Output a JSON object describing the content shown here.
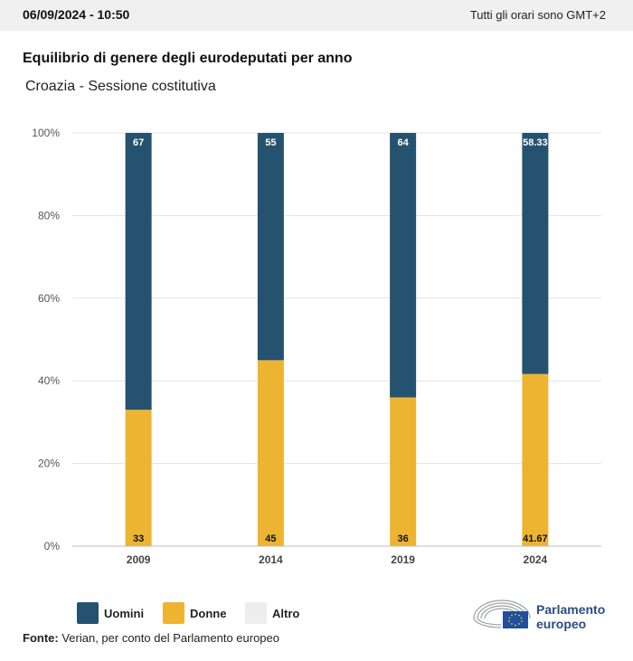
{
  "header": {
    "datetime": "06/09/2024 - 10:50",
    "timezone_note": "Tutti gli orari sono GMT+2"
  },
  "title": "Equilibrio di genere degli eurodeputati per anno",
  "subtitle": "Croazia - Sessione costitutiva",
  "colors": {
    "men": "#24526f",
    "women": "#edb432",
    "other": "#ededed",
    "grid": "#e3e3e3",
    "axis": "#bdbdbd"
  },
  "legend": [
    {
      "label": "Uomini",
      "color": "#24526f"
    },
    {
      "label": "Donne",
      "color": "#edb432"
    },
    {
      "label": "Altro",
      "color": "#ededed"
    }
  ],
  "source": {
    "label": "Fonte:",
    "text": " Verian, per conto del Parlamento europeo"
  },
  "logo": {
    "line1": "Parlamento",
    "line2": "europeo",
    "icon": "european-parliament-hemicycle-eu-flag-icon"
  },
  "chart_data": {
    "type": "bar",
    "stacked": true,
    "categories": [
      "2009",
      "2014",
      "2019",
      "2024"
    ],
    "series": [
      {
        "name": "Donne",
        "values": [
          33,
          45,
          36,
          41.67
        ],
        "labels": [
          "33",
          "45",
          "36",
          "41.67"
        ]
      },
      {
        "name": "Uomini",
        "values": [
          67,
          55,
          64,
          58.33
        ],
        "labels": [
          "67",
          "55",
          "64",
          "58.33"
        ]
      }
    ],
    "yticks": [
      "0%",
      "20%",
      "40%",
      "60%",
      "80%",
      "100%"
    ],
    "ylim": [
      0,
      100
    ],
    "grid": true,
    "legend_position": "bottom-left"
  }
}
